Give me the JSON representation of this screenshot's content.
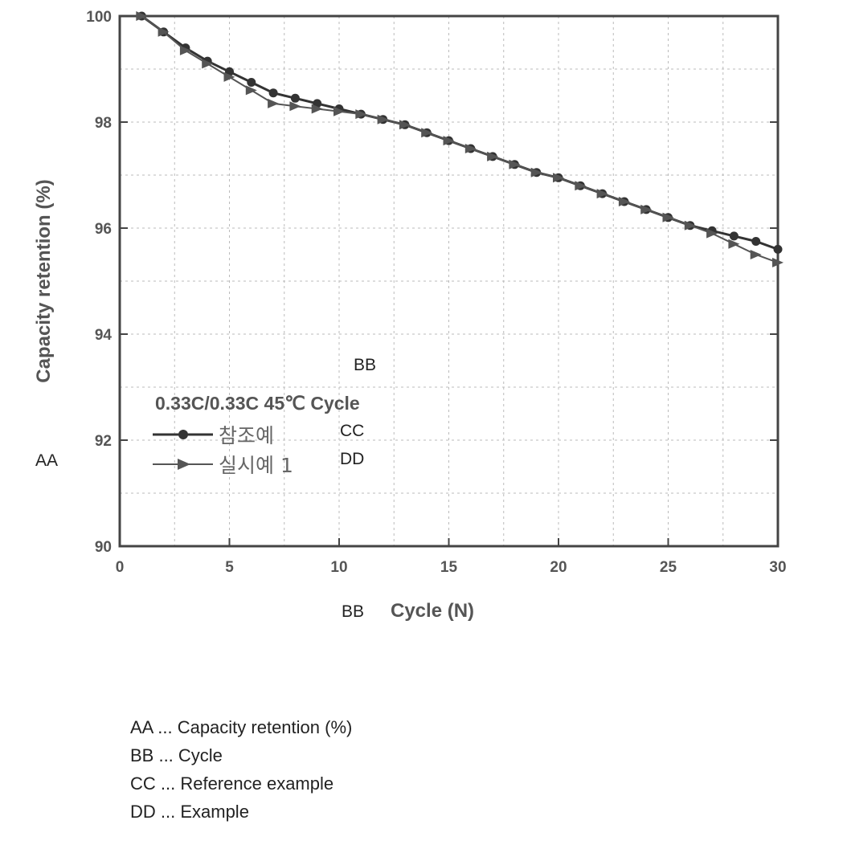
{
  "chart_data": {
    "type": "line",
    "title": "",
    "xlabel": "Cycle (N)",
    "ylabel": "Capacity retention (%)",
    "xlim": [
      0,
      30
    ],
    "ylim": [
      90,
      100
    ],
    "xticks": [
      0,
      5,
      10,
      15,
      20,
      25,
      30
    ],
    "yticks": [
      90,
      92,
      94,
      96,
      98,
      100
    ],
    "grid": true,
    "legend": {
      "title": "0.33C/0.33C 45℃ Cycle",
      "placement": "lower-left"
    },
    "series": [
      {
        "name": "참조예",
        "marker": "filled",
        "x": [
          1,
          2,
          3,
          4,
          5,
          6,
          7,
          8,
          9,
          10,
          11,
          12,
          13,
          14,
          15,
          16,
          17,
          18,
          19,
          20,
          21,
          22,
          23,
          24,
          25,
          26,
          27,
          28,
          29,
          30
        ],
        "y": [
          100.0,
          99.7,
          99.4,
          99.15,
          98.95,
          98.75,
          98.55,
          98.45,
          98.35,
          98.25,
          98.15,
          98.05,
          97.95,
          97.8,
          97.65,
          97.5,
          97.35,
          97.2,
          97.05,
          96.95,
          96.8,
          96.65,
          96.5,
          96.35,
          96.2,
          96.05,
          95.95,
          95.85,
          95.75,
          95.6
        ],
        "color": "#333333"
      },
      {
        "name": "실시예 1",
        "marker": "arrow",
        "x": [
          1,
          2,
          3,
          4,
          5,
          6,
          7,
          8,
          9,
          10,
          11,
          12,
          13,
          14,
          15,
          16,
          17,
          18,
          19,
          20,
          21,
          22,
          23,
          24,
          25,
          26,
          27,
          28,
          29,
          30
        ],
        "y": [
          100.0,
          99.7,
          99.35,
          99.1,
          98.85,
          98.6,
          98.35,
          98.3,
          98.25,
          98.2,
          98.15,
          98.05,
          97.95,
          97.8,
          97.65,
          97.5,
          97.35,
          97.2,
          97.05,
          96.95,
          96.8,
          96.65,
          96.5,
          96.35,
          96.2,
          96.05,
          95.9,
          95.7,
          95.5,
          95.35
        ],
        "color": "#555555"
      }
    ]
  },
  "overlay_labels": {
    "aa": "AA",
    "bb_plot": "BB",
    "bb_axis": "BB",
    "cc": "CC",
    "dd": "DD"
  },
  "notes": [
    "AA ... Capacity retention (%)",
    "BB ... Cycle",
    "CC ... Reference example",
    "DD ... Example"
  ]
}
